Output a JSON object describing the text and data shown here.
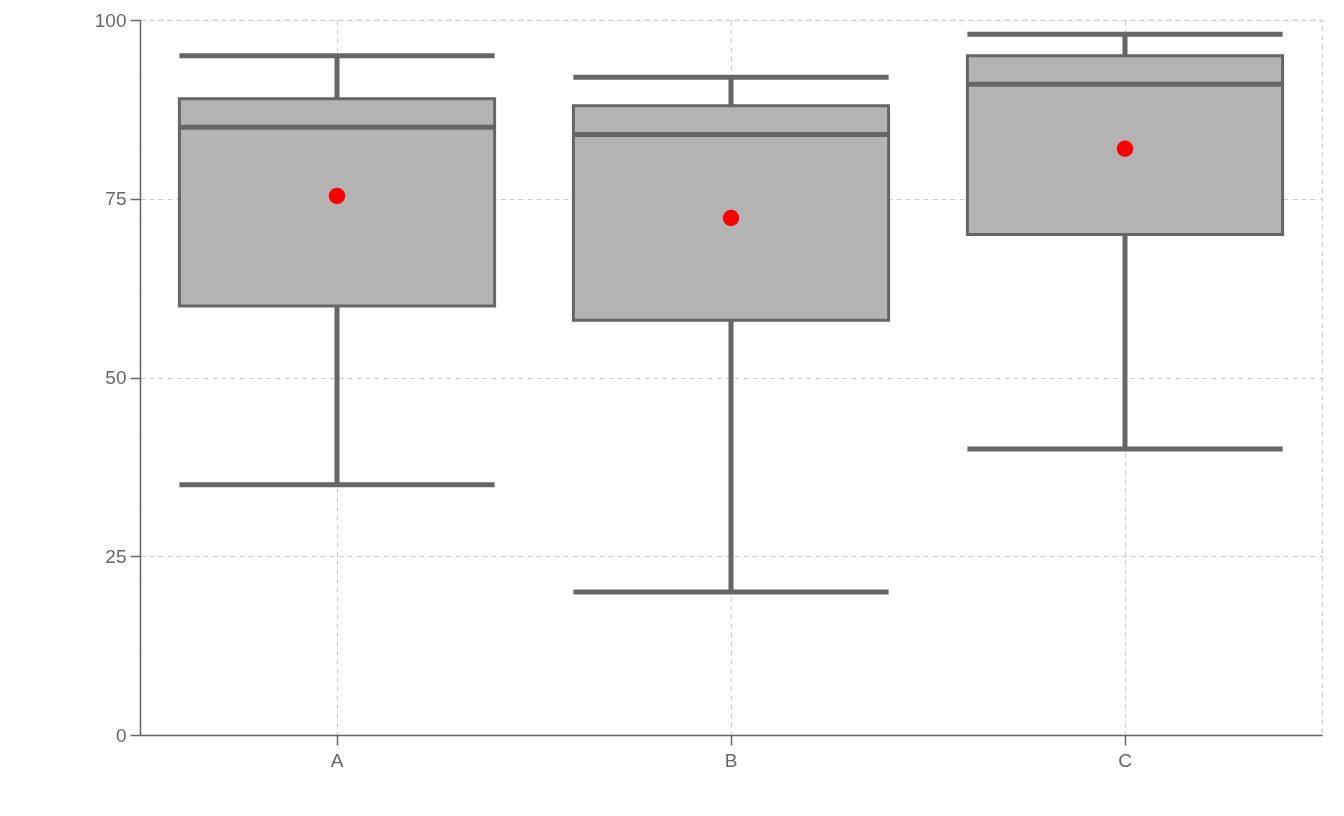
{
  "chart_data": {
    "type": "box",
    "categories": [
      "A",
      "B",
      "C"
    ],
    "series": [
      {
        "color": "#b3b3b3",
        "boxes": [
          {
            "low": 35,
            "q1": 60,
            "median": 85,
            "q3": 89,
            "high": 95,
            "mean": 75.4
          },
          {
            "low": 20,
            "q1": 58,
            "median": 84,
            "q3": 88,
            "high": 92,
            "mean": 72.3
          },
          {
            "low": 40,
            "q1": 70,
            "median": 91,
            "q3": 95,
            "high": 98,
            "mean": 82
          }
        ]
      }
    ],
    "ylim": [
      0,
      100
    ],
    "yticks": [
      0,
      25,
      50,
      75,
      100
    ],
    "grid": true
  }
}
